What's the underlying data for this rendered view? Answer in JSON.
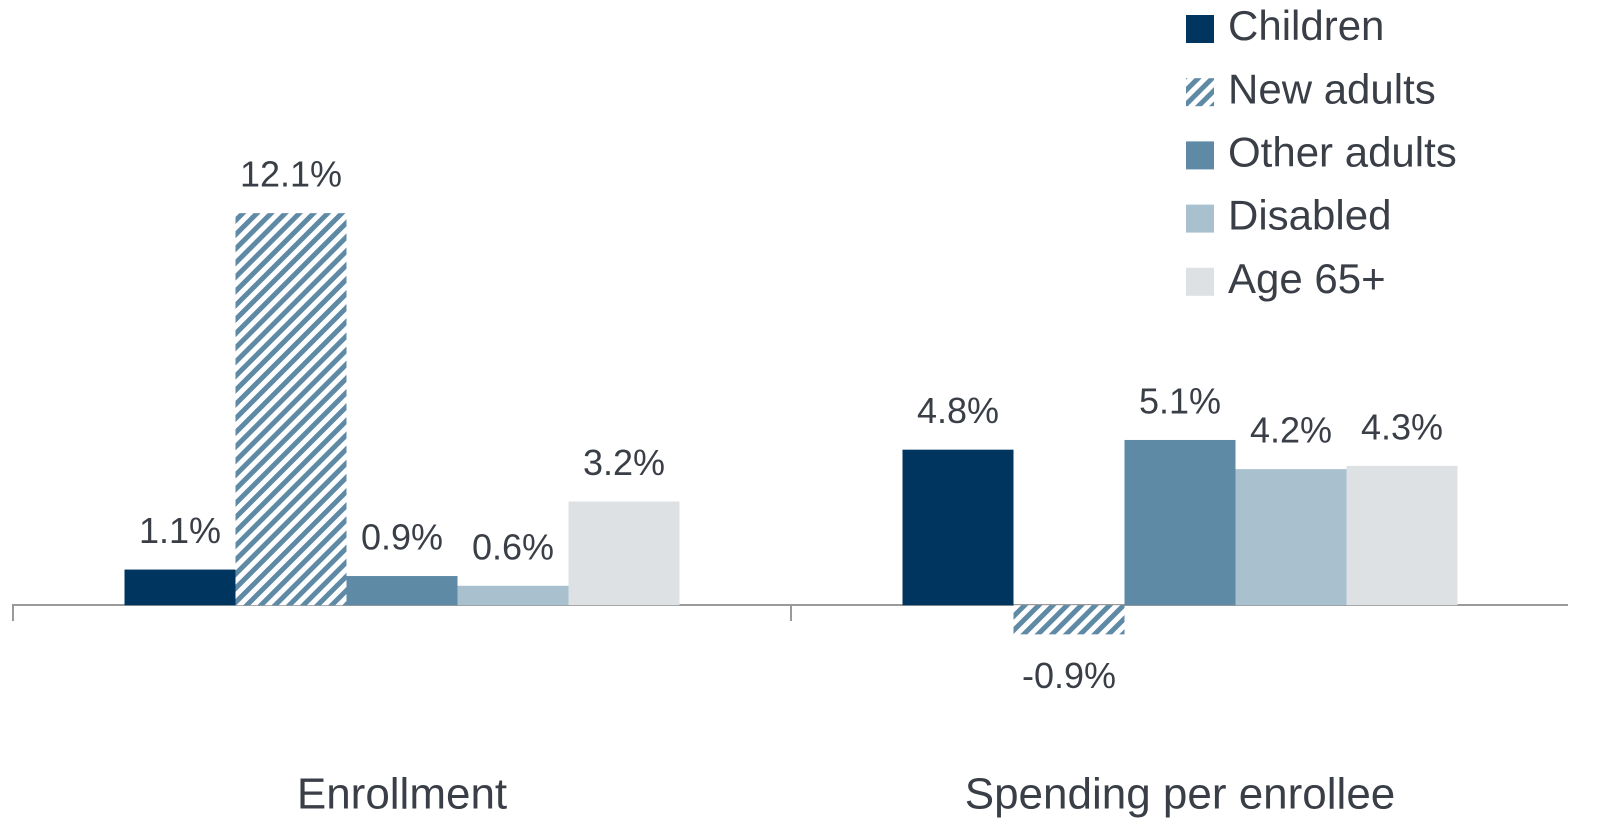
{
  "chart_data": {
    "type": "bar",
    "categories": [
      "Enrollment",
      "Spending per enrollee"
    ],
    "series": [
      {
        "name": "Children",
        "color": "#003560",
        "values": [
          1.1,
          4.8
        ],
        "value_labels": [
          "1.1%",
          "4.8%"
        ]
      },
      {
        "name": "New adults",
        "color": "#5f8aa6",
        "hatch": true,
        "values": [
          12.1,
          -0.9
        ],
        "value_labels": [
          "12.1%",
          "-0.9%"
        ]
      },
      {
        "name": "Other adults",
        "color": "#5f8aa6",
        "values": [
          0.9,
          5.1
        ],
        "value_labels": [
          "0.9%",
          "5.1%"
        ]
      },
      {
        "name": "Disabled",
        "color": "#a9c1cf",
        "values": [
          0.6,
          4.2
        ],
        "value_labels": [
          "0.6%",
          "4.2%"
        ]
      },
      {
        "name": "Age 65+",
        "color": "#dde1e4",
        "values": [
          3.2,
          4.3
        ],
        "value_labels": [
          "3.2%",
          "4.3%"
        ]
      }
    ],
    "ylim": [
      -7,
      13
    ],
    "legend": "top-right"
  }
}
